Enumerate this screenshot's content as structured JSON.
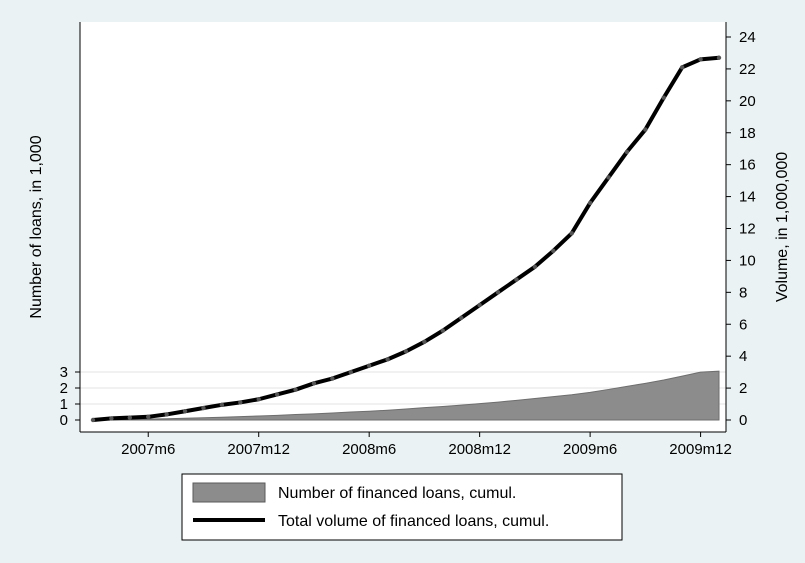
{
  "chart_data": {
    "type": "area-line-dual-axis",
    "x_tick_labels": [
      "2007m6",
      "2007m12",
      "2008m6",
      "2008m12",
      "2009m6",
      "2009m12"
    ],
    "y_left": {
      "label": "Number of loans, in 1,000",
      "ticks": [
        0,
        1,
        2,
        3
      ],
      "range": [
        0,
        3
      ]
    },
    "y_right": {
      "label": "Volume, in 1,000,000",
      "ticks": [
        0,
        2,
        4,
        6,
        8,
        10,
        12,
        14,
        16,
        18,
        20,
        22,
        24
      ],
      "range": [
        0,
        24
      ]
    },
    "x": [
      "2007m3",
      "2007m4",
      "2007m5",
      "2007m6",
      "2007m7",
      "2007m8",
      "2007m9",
      "2007m10",
      "2007m11",
      "2007m12",
      "2008m1",
      "2008m2",
      "2008m3",
      "2008m4",
      "2008m5",
      "2008m6",
      "2008m7",
      "2008m8",
      "2008m9",
      "2008m10",
      "2008m11",
      "2008m12",
      "2009m1",
      "2009m2",
      "2009m3",
      "2009m4",
      "2009m5",
      "2009m6",
      "2009m7",
      "2009m8",
      "2009m9",
      "2009m10",
      "2009m11",
      "2009m12",
      "2010m1"
    ],
    "series": [
      {
        "name": "Number of financed loans, cumul.",
        "type": "area",
        "axis": "left",
        "color": "#8c8c8c",
        "values": [
          0.0,
          0.02,
          0.04,
          0.06,
          0.08,
          0.11,
          0.14,
          0.17,
          0.21,
          0.25,
          0.29,
          0.34,
          0.38,
          0.44,
          0.5,
          0.55,
          0.61,
          0.69,
          0.77,
          0.84,
          0.93,
          1.02,
          1.12,
          1.23,
          1.34,
          1.46,
          1.58,
          1.73,
          1.91,
          2.1,
          2.29,
          2.5,
          2.74,
          2.99,
          3.05
        ]
      },
      {
        "name": "Total volume of financed loans, cumul.",
        "type": "line",
        "axis": "right",
        "color": "#000000",
        "values": [
          0.0,
          0.1,
          0.15,
          0.2,
          0.35,
          0.55,
          0.75,
          0.95,
          1.1,
          1.3,
          1.6,
          1.9,
          2.3,
          2.6,
          3.0,
          3.4,
          3.8,
          4.3,
          4.9,
          5.6,
          6.4,
          7.2,
          8.0,
          8.8,
          9.6,
          10.6,
          11.7,
          13.6,
          15.2,
          16.8,
          18.2,
          20.2,
          22.1,
          22.6,
          22.7
        ]
      }
    ],
    "legend": {
      "placement": "bottom-center",
      "items": [
        "Number of financed loans, cumul.",
        "Total volume of financed loans, cumul."
      ]
    }
  }
}
